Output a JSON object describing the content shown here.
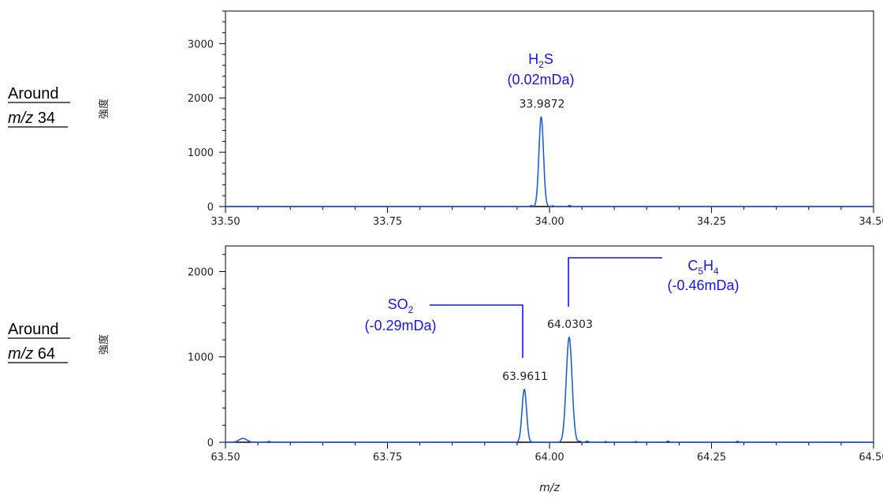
{
  "colors": {
    "trace": "#1f5fd6",
    "annotation": "#1515e6",
    "axis": "#000000",
    "text": "#222222"
  },
  "xlabel": "m/z",
  "chart_data": [
    {
      "type": "line",
      "row_label_line1": "Around",
      "row_label_mz": "m/z",
      "row_label_value": " 34",
      "ylabel": "強度",
      "xlim": [
        33.5,
        34.5
      ],
      "ylim": [
        0,
        3600
      ],
      "x_ticks": [
        33.5,
        33.75,
        34.0,
        34.25,
        34.5
      ],
      "x_tick_labels": [
        "33.50",
        "33.75",
        "34.00",
        "34.25",
        "34.50"
      ],
      "y_ticks": [
        0,
        1000,
        2000,
        3000
      ],
      "y_tick_labels": [
        "0",
        "1000",
        "2000",
        "3000"
      ],
      "series": [
        {
          "peaks": [
            {
              "mz": 33.9872,
              "intensity": 1650,
              "width": 0.0035
            },
            {
              "mz": 33.972,
              "intensity": 15,
              "width": 0.002
            },
            {
              "mz": 34.005,
              "intensity": 12,
              "width": 0.002
            },
            {
              "mz": 34.031,
              "intensity": 18,
              "width": 0.002
            }
          ]
        }
      ],
      "peak_labels": [
        {
          "mz": 33.9872,
          "intensity": 1650,
          "text": "33.9872"
        }
      ],
      "annotations": [
        {
          "formula": "H",
          "sub1": "2",
          "formula2": "S",
          "sub2": "",
          "error": "(0.02mDa)",
          "mz": 33.9872
        }
      ]
    },
    {
      "type": "line",
      "row_label_line1": "Around",
      "row_label_mz": "m/z",
      "row_label_value": " 64",
      "ylabel": "強度",
      "xlim": [
        63.5,
        64.5
      ],
      "ylim": [
        0,
        2300
      ],
      "x_ticks": [
        63.5,
        63.75,
        64.0,
        64.25,
        64.5
      ],
      "x_tick_labels": [
        "63.50",
        "63.75",
        "64.00",
        "64.25",
        "64.50"
      ],
      "y_ticks": [
        0,
        1000,
        2000
      ],
      "y_tick_labels": [
        "0",
        "1000",
        "2000"
      ],
      "series": [
        {
          "peaks": [
            {
              "mz": 63.527,
              "intensity": 45,
              "width": 0.006
            },
            {
              "mz": 63.567,
              "intensity": 10,
              "width": 0.002
            },
            {
              "mz": 63.9611,
              "intensity": 620,
              "width": 0.0035
            },
            {
              "mz": 64.0303,
              "intensity": 1230,
              "width": 0.0045
            },
            {
              "mz": 64.047,
              "intensity": 10,
              "width": 0.002
            },
            {
              "mz": 64.058,
              "intensity": 12,
              "width": 0.002
            },
            {
              "mz": 64.087,
              "intensity": 8,
              "width": 0.002
            },
            {
              "mz": 64.133,
              "intensity": 8,
              "width": 0.002
            },
            {
              "mz": 64.183,
              "intensity": 12,
              "width": 0.002
            },
            {
              "mz": 64.29,
              "intensity": 10,
              "width": 0.002
            }
          ]
        }
      ],
      "peak_labels": [
        {
          "mz": 63.9611,
          "intensity": 620,
          "text": "63.9611"
        },
        {
          "mz": 64.0303,
          "intensity": 1230,
          "text": "64.0303"
        }
      ],
      "annotations": [
        {
          "formula": "SO",
          "sub1": "2",
          "formula2": "",
          "sub2": "",
          "error": "(-0.29mDa)",
          "mz": 63.9611
        },
        {
          "formula": "C",
          "sub1": "5",
          "formula2": "H",
          "sub2": "4",
          "error": "(-0.46mDa)",
          "mz": 64.0303
        }
      ]
    }
  ]
}
